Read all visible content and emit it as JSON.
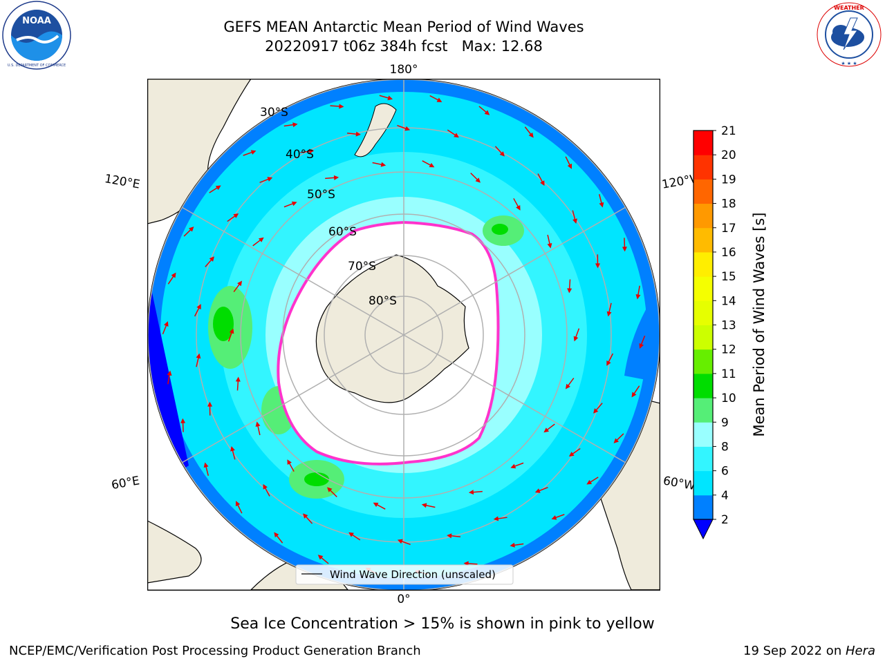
{
  "title": "GEFS MEAN Antarctic Mean Period of Wind Waves",
  "subtitle_line": "20220917 t06z 384h fcst   Max: 12.68",
  "caption": "Sea Ice Concentration > 15% is shown in pink to yellow",
  "footer": {
    "left": "NCEP/EMC/Verification Post Processing Product Generation Branch",
    "date": "19 Sep 2022 on ",
    "host": "Hera"
  },
  "logos": {
    "left": {
      "name": "noaa-logo",
      "text": "NOAA",
      "ring_text": "NATIONAL OCEANIC AND ATMOSPHERIC ADMINISTRATION · U.S. DEPARTMENT OF COMMERCE"
    },
    "right": {
      "name": "nws-logo",
      "ring_text": "NATIONAL WEATHER SERVICE"
    }
  },
  "map": {
    "projection": "south-polar-stereographic",
    "longitude_labels": {
      "top": "180°",
      "bottom": "0°",
      "left_upper": "120°E",
      "left_lower": "60°E",
      "right_upper": "120°W",
      "right_lower": "60°W"
    },
    "latitude_labels": [
      "30°S",
      "40°S",
      "50°S",
      "60°S",
      "70°S",
      "80°S"
    ],
    "legend": "Wind Wave Direction (unscaled)",
    "colors": {
      "land": "#efebdc",
      "sea_ice": "#ffffff",
      "ice_edge": "#ff33cc",
      "arrow": "#e60000",
      "grid": "#b0b0b0"
    }
  },
  "colorbar": {
    "label": "Mean Period of Wind Waves [s]",
    "ticks": [
      "2",
      "4",
      "6",
      "8",
      "9",
      "10",
      "11",
      "12",
      "13",
      "14",
      "15",
      "16",
      "17",
      "18",
      "19",
      "20",
      "21"
    ],
    "bins": [
      {
        "from": 2,
        "to": 4,
        "color": "#0080ff"
      },
      {
        "from": 4,
        "to": 6,
        "color": "#00e5ff"
      },
      {
        "from": 6,
        "to": 8,
        "color": "#33f5ff"
      },
      {
        "from": 8,
        "to": 9,
        "color": "#99ffff"
      },
      {
        "from": 9,
        "to": 10,
        "color": "#55ee77"
      },
      {
        "from": 10,
        "to": 11,
        "color": "#00dd00"
      },
      {
        "from": 11,
        "to": 12,
        "color": "#66ee00"
      },
      {
        "from": 12,
        "to": 13,
        "color": "#ccff00"
      },
      {
        "from": 13,
        "to": 14,
        "color": "#e6ff00"
      },
      {
        "from": 14,
        "to": 15,
        "color": "#f5ff00"
      },
      {
        "from": 15,
        "to": 16,
        "color": "#ffee00"
      },
      {
        "from": 16,
        "to": 17,
        "color": "#ffbb00"
      },
      {
        "from": 17,
        "to": 18,
        "color": "#ff9900"
      },
      {
        "from": 18,
        "to": 19,
        "color": "#ff6600"
      },
      {
        "from": 19,
        "to": 20,
        "color": "#ff3300"
      },
      {
        "from": 20,
        "to": 21,
        "color": "#ff0000"
      }
    ],
    "under_color": "#0000ff"
  }
}
